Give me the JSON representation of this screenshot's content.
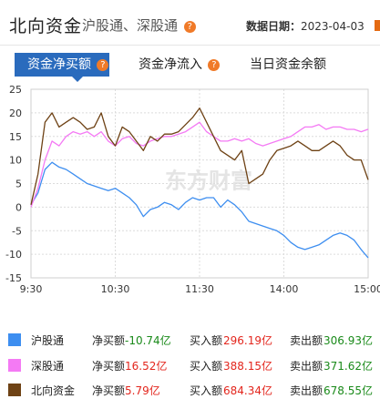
{
  "header": {
    "title": "北向资金",
    "link_sh": "沪股通",
    "separator": "、",
    "link_sz": "深股通",
    "help_glyph": "?",
    "date_label": "数据日期：",
    "date_value": "2023-04-03"
  },
  "tabs": [
    {
      "label": "资金净买额",
      "active": true
    },
    {
      "label": "资金净流入",
      "active": false
    },
    {
      "label": "当日资金余额",
      "active": false
    }
  ],
  "watermark": "东方财富",
  "colors": {
    "sh": "#3d8ef0",
    "sz": "#f47af4",
    "north": "#6e4215",
    "tab_active": "#2a6bbd",
    "up": "#e3261d",
    "down": "#1a8a1a"
  },
  "chart_data": {
    "type": "line",
    "x_ticks": [
      "9:30",
      "10:30",
      "11:30",
      "14:00",
      "15:00"
    ],
    "y_ticks": [
      25,
      20,
      15,
      10,
      5,
      0,
      -5,
      -10,
      -15
    ],
    "ylim": [
      -15,
      25
    ],
    "grid": true,
    "series": [
      {
        "name": "沪股通",
        "x": [
          0,
          5,
          10,
          15,
          20,
          25,
          30,
          35,
          40,
          45,
          50,
          55,
          60,
          65,
          70,
          75,
          80,
          85,
          90,
          95,
          100,
          105,
          110,
          115,
          120,
          125,
          130,
          135,
          140,
          145,
          150,
          155,
          160,
          165,
          170,
          175,
          180,
          185,
          190,
          195,
          200,
          205,
          210,
          215,
          220,
          225,
          230,
          235,
          240
        ],
        "values": [
          0.5,
          3,
          8,
          9.5,
          8.5,
          8,
          7,
          6,
          5,
          4.5,
          4,
          3.5,
          4,
          3,
          2,
          0.5,
          -2,
          -0.5,
          0,
          1,
          0.5,
          -0.5,
          1,
          2,
          1.5,
          2,
          2,
          0,
          1.5,
          0.5,
          -1,
          -3,
          -3.5,
          -4,
          -4.5,
          -5,
          -6,
          -7.5,
          -8.5,
          -9,
          -8.5,
          -8,
          -7,
          -6,
          -5.5,
          -6,
          -7,
          -9,
          -10.74
        ]
      },
      {
        "name": "深股通",
        "x": [
          0,
          5,
          10,
          15,
          20,
          25,
          30,
          35,
          40,
          45,
          50,
          55,
          60,
          65,
          70,
          75,
          80,
          85,
          90,
          95,
          100,
          105,
          110,
          115,
          120,
          125,
          130,
          135,
          140,
          145,
          150,
          155,
          160,
          165,
          170,
          175,
          180,
          185,
          190,
          195,
          200,
          205,
          210,
          215,
          220,
          225,
          230,
          235,
          240
        ],
        "values": [
          0,
          4,
          10,
          14,
          13,
          15,
          16,
          15.5,
          16,
          15,
          16,
          14,
          13,
          14.5,
          15,
          13.5,
          13,
          14,
          14.5,
          15,
          15,
          15.5,
          16,
          17,
          18,
          16,
          15,
          14,
          14,
          14.5,
          14,
          14.5,
          13.5,
          13,
          13.5,
          14,
          14.5,
          15,
          16,
          17,
          17,
          17.5,
          16.5,
          17,
          17,
          16.5,
          16.5,
          16,
          16.52
        ]
      },
      {
        "name": "北向资金",
        "x": [
          0,
          5,
          10,
          15,
          20,
          25,
          30,
          35,
          40,
          45,
          50,
          55,
          60,
          65,
          70,
          75,
          80,
          85,
          90,
          95,
          100,
          105,
          110,
          115,
          120,
          125,
          130,
          135,
          140,
          145,
          150,
          155,
          160,
          165,
          170,
          175,
          180,
          185,
          190,
          195,
          200,
          205,
          210,
          215,
          220,
          225,
          230,
          235,
          240
        ],
        "values": [
          0.5,
          7,
          18,
          20,
          17,
          18,
          19,
          18,
          16.5,
          17,
          20,
          15,
          13,
          17,
          16,
          14,
          12,
          15,
          14,
          15.5,
          15.5,
          16,
          17.5,
          19,
          21,
          18,
          15,
          12,
          11,
          10,
          12,
          5,
          6,
          7,
          10,
          12,
          12.5,
          13,
          14,
          13,
          12,
          12,
          13,
          14,
          13,
          11,
          10,
          10,
          5.79
        ]
      }
    ]
  },
  "legend": [
    {
      "name": "沪股通",
      "net_label": "净买额",
      "net_value": "-10.74亿",
      "buy_label": "买入额",
      "buy_value": "296.19亿",
      "sell_label": "卖出额",
      "sell_value": "306.93亿"
    },
    {
      "name": "深股通",
      "net_label": "净买额",
      "net_value": "16.52亿",
      "buy_label": "买入额",
      "buy_value": "388.15亿",
      "sell_label": "卖出额",
      "sell_value": "371.62亿"
    },
    {
      "name": "北向资金",
      "net_label": "净买额",
      "net_value": "5.79亿",
      "buy_label": "买入额",
      "buy_value": "684.34亿",
      "sell_label": "卖出额",
      "sell_value": "678.55亿"
    }
  ]
}
